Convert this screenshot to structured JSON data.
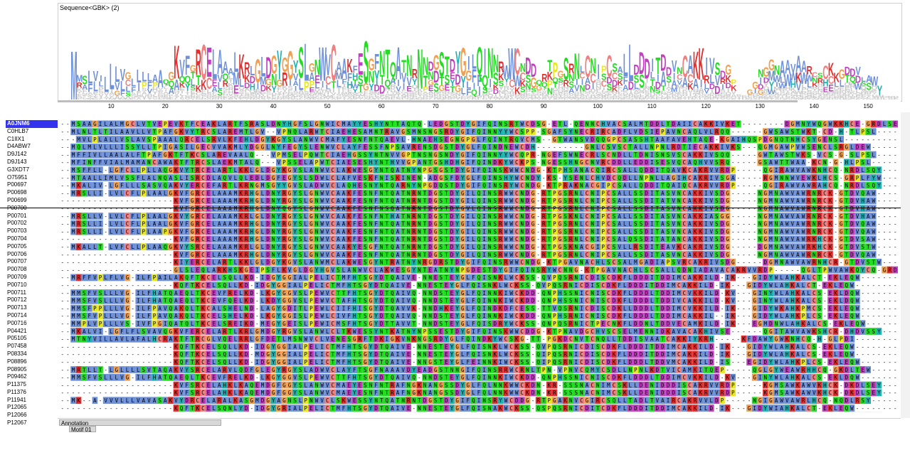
{
  "logo": {
    "title": "Sequence<GBK> (2)"
  },
  "ruler": {
    "ticks": [
      "10",
      "20",
      "30",
      "40",
      "50",
      "60",
      "70",
      "80",
      "90",
      "100",
      "110",
      "120",
      "130",
      "140",
      "150"
    ]
  },
  "annotation": {
    "label": "Annotation",
    "motif": "Motif 01"
  },
  "colors": {
    "A": "#6e90d8",
    "V": "#6e90d8",
    "I": "#6e90d8",
    "L": "#6e90d8",
    "M": "#6e90d8",
    "F": "#6e90d8",
    "W": "#6e90d8",
    "K": "#e03030",
    "R": "#e03030",
    "E": "#c040c0",
    "D": "#c040c0",
    "S": "#22dd22",
    "T": "#22dd22",
    "N": "#22dd22",
    "Q": "#22dd22",
    "C": "#f08080",
    "G": "#f0a050",
    "P": "#e8e820",
    "H": "#20b0b0",
    "Y": "#20b0b0"
  },
  "sequences": [
    {
      "name": "A0JNM6",
      "selected": true,
      "seq": "--MSAAGILALMGCLVTVEPEVKTFCEAKLARTFSRASLDNYHGFSLGNWICMAYYESHYNTTAQTQ-LEDGSTDYGIFQINSRTWCDSG-ETL-QENNCHVACSALMTDDLTDAIICAKKIVKET--------DGMNYWQGWKKHCE-GRDLSEW"
    },
    {
      "name": "C0HLB7",
      "seq": "--MLNLTLTILAAVLLVTPAFGKVYTRCSLAREMTLGV--VPNQLARWTCIAEHESAMNTRAVGSMNSNGSRDYGIFQINNYYWCSPP-SGAFSYNECRIRCADFLVDSIEPAVNCAQLVLRQQ------GWSAWSTWKT-CD-H-TLPSL"
    },
    {
      "name": "C1IIX1",
      "seq": "---MVLPLALLVSLAVSPAAALQRCELSRVLKFEHLDGYKGYSLANWVCMAFYESNFNTQAEVL-HNAEHSEGNGPGLFQINTRQVCMS--GTWANSVDQQGPCSASSHTAAFAVEHTAQE-KGAIHQSPDGNQTNHCSYGENSL"
    },
    {
      "name": "D4ABW7",
      "seq": "--MQLMLVLLLISSYLLTPIGASILGECVVAKMLYDGGLNYFEGYSLENWVCLAYFESSFNPSAVRENSDGSTDYGLFQINDNEWCDH---------GNLCSVSCTALLNPNLRDTIECAKKIVKS---QGMGAWPVWSENCLSRGLDEW"
    },
    {
      "name": "D9J142",
      "seq": "--MFFIVLLAALALFTPAFGKTFTKCSLAREVAALQ---VPMSELPQWTCIAEHGSSYNTNVVGPTNSNGSNDYGIFQINNYYWCQPR-NGEFSWNECRLSCNDLLTDNISNSVSCAKKIVSQQ-----GWTAWSTWKS-VCS-G-SLPSL"
    },
    {
      "name": "D9J143",
      "seq": "--MFINFFVIALMAMANCAWAKTFTRCSLAEKMTALQ---VPSSELAPWTCIAESESHYNTHVVGPANTGSHDHGIFQINDKYWCKPS-NGESSHNGCNVRCDDLLEDDISESVQCAQHVVSRQ-----GSAWTTWAA-KCN-G-HLPSL"
    },
    {
      "name": "G3XDT7",
      "seq": "--MSFFLL-LGFCLLPLLAQGKVYTRCELARTLKKLGLDGYKGVSLANWVCLAKWESGYNTQATNYNPGSGSTDYGIFQINSKWWCNDG-KTPHSANACQIRCSALLQDDITQAVKCAKRVVRDP-----QGIRAWVAWKNHCQ-NRDLSQY"
    },
    {
      "name": "O75951",
      "seq": "--MTAALLIMLVSSFLALNQASLISRCDLAQVLQLEDLDGFEGYSLSDWLCLAFVESKFNISKINEN-ADGSFDYGLFQINSHYWCNDY-KS-YSENLCHVDCQDLLNPNLLAGIHCAKRIVSGA-----RGMNNWVEWKLHCS-GRPLFYW"
    },
    {
      "name": "P00697",
      "seq": "--MKALIV-LGFLLLSASVQAKVYERCEFARTLKRNGMSGYYGVSLADWVCLAQHESNYNTQARNYNPGDQSTDYGIFQINSRYWCNDG-KTPRAKNACGIPCSALLQDDITQAIQCAKRVVRDP-----QGIRAWVAWRAHCQ-NRDLSQY"
    },
    {
      "name": "P00698",
      "seq": "--MRSLLI-LVLCFLPLAALGKVFGRCELAAAMKRHGLDNYRGYSLGNWVCAAKFESNFNTQATNRNTDGSTDYGILQINSRWWCNDG-RTPGSRNLCNIPCSALLSSDITASVNCAKKIVSDG-----NGMNAWVAWRNRCK-GTDVQAW"
    },
    {
      "name": "P00699",
      "seq": "---------------------KVFGRCELAAAMKRHGLDNYRGYSLGNWVCAAKFESNFNTQATNRNTDGSTDYGILQINSRWWCNDG-RTPGSRNLCNIPCSALLSSDITATVNCAKKIVSDG-----NGMNAWVAWRNRCK-GTDVHAW"
    },
    {
      "name": "P00700",
      "seq": "---------------------KVFGRCELAAAMKRHGLDNYQGYSLGNWVCAAKFESNFNSQATNRNTDGSTDYGVLQINSRWWCNDG-RTPGSRNLCNIPCSALLSSDITASVNCAKKIVSDG-----NGMNAWVAWRNRCK-GTDVHAW"
    },
    {
      "name": "P00701",
      "seq": "--MRSLLV-LVLCFLPLAALGKVYGRCELAAAMKRLGLDNYRGYSLGNWVCAAKFESNFNTHATNRNTDGSTDYGILQINSRWWCNDG-RTPGSKNLCNIPCSALLSSDITASVNCAKKIASGG-----NGMNAWVAWRNRCK-GTDVHAW"
    },
    {
      "name": "P00702",
      "seq": "--MRSLLI-LVLCFLPLAALGKVFGRCELAAAMKRHGLDNYRGYSLGNWVCAAKFESNFNTQATNRNTDGSTDYGILQINSRWWCNDG-RTPGSRNLCNIPCSALLSSDITASVNCAKKIVSDG-----NGMNAWVAWRNRCK-GTDVQAW"
    },
    {
      "name": "P00703",
      "seq": "--MRSLLI-LVLCFLPLAAPGKVFGRCELAAAMKRHGLDNYRGYSLGNWVCAAKFESNFNTQATNRNTDGSTDYGILQINSRWWCNDG-RTPGSRNLCNIPCSALLSSDITASVNCAKKIVSDG-----NGMNAWVAWRNRCK-GTDVQAW"
    },
    {
      "name": "P00704",
      "seq": "---------------------KVFGRCELAAAMKRHGLDNYRGYSLGNWVCAAKFESNFNTQATNRNTDGSTDYGILQINSRWWCNDG-RTPGSRNLCNIPCSALQSSDITATANCAKKIVSDG-----NGMNAWVAWRKHCK-GTDVSAW"
    },
    {
      "name": "P00705",
      "seq": "--MKALLT-LVFCLLPLAAQGKVYSRCELAAAMKRLGLDNYRGYSLGNWVCAAKYESGFNTQATNRNTDGSTDYGILQINSRWWCNDG-KTPGSKNACGIPCSVLLRSDITEAVKCAKRIVSDG-----DGMNAWVAWRKHCK-GTDVSTW"
    },
    {
      "name": "P00706",
      "seq": "---------------------KVFGRCELAAAMKRHGLDNYRGYSLGNWVCAAKFESNFNTQATNRNTDGSTDYGILQINSRWWCNDG-RTPGSRNLCNIPCSALLSSDITASVNCAKKIVSDG-----NGMNAWVAWRNRCK-GTDVQAW"
    },
    {
      "name": "P00707",
      "seq": "---------------------KIYERCELARTLKKLGLDGYKGVSLANWMCLAKWESGYNTRATNYNRGDRSTDYGIFQINSRWWCNDG-KTPGAVNACHLSCSALMGADIAPSVRCAKRIVSDG-----DGMNAWVAWRNHCR-GTDVSTW"
    },
    {
      "name": "P00708",
      "seq": "---------------------GLSLEQLARKHSKGEIPSFLKVGLDGYHGVSLANWVCLAKWESGYNTEATNYNPGDESTDYGIFQINSRYWCNNG-KTPGAVNACHLSCSALLQDNIADAVACAKRVVRDP-----QGLTPWVAWKQYCQ-GRDLSKY"
    },
    {
      "name": "P00709",
      "seq": "--MRFFVPLFLVG-ILFPAILAKQFTKCELSQLLKD-IDGYGGIALPELICTMFHTSGYDTQAIVE-NNESTEYGLFQISNKLWCKSS-QVPQSRNICDISCDKFLDDDITDDIMCAKKILD-IK---GIDYWLAHKALCT-EKLEQW"
    },
    {
      "name": "P00710",
      "seq": "---------------------KQFTKCELSQLLKD-IDGYGGIALPELICTMFHTSGYDTQAIVE-NNESTEYGLFQISNKLWCKSS-QVPQSRNICDISCDKFLDDDITDDIMCAKKILD-IK---GIDYWLAHKALCT-EKLEQW"
    },
    {
      "name": "P00711",
      "seq": "--MMSFVSLLLVG-ILFHATQAEQLTKCEVFRELKD-LKGYGGVSLPEWVCTTFHTSGYDTQAIVQ-NNDSTEYGLFQINNKIWCKDD-QNPHSSNICNISCDKFLDDDLTDDIMCVKKILD-KV---GINYWLAHKALCS-EKLDQW"
    },
    {
      "name": "P00712",
      "seq": "--MMSFVSLLLVG-ILFHATQAEQLTKCEVFQELKD-LKDYGGVSLPEWVCTAFHTSGYDTQAIVQ-NNDSTEYGLFQINNKIWCKDD-QNPHSSNICNISCDKFLDDDLTDDIVCAKKILD-KV---GINYWLAHKALCS-EKLDQW"
    },
    {
      "name": "P00713",
      "seq": "--MMSFPPLLLVG-ILFPAVQAKQLTKCALSHELND-LAGYGDITLPEWLCIIFHISGYDTQAVVK-NNDHKEYGLFQINDKDFCESS-TTVQSRNICDISCDKLLDDDLTDDIMCVKKILD-IK---GIDYWKAHKPMCS-EKLEQW"
    },
    {
      "name": "P00714",
      "seq": "--MMSFVPLLLVG-ILFPAVQAKQLTKCELSHELKD-LKGYGGISLPEWLCIVFHTSGYDTQAIVQ-NNDSTEYGLFQINNKIWCKDD-QNPHSRNICNISCDKFLDDDLTDDIMCAKKIL--IK---GIDYWLAHKPLCS-EKLEQW"
    },
    {
      "name": "P00716",
      "seq": "--MMPLVPLLLVS-IVFPGIQATQLTKCELSREIKD-MEGYGEISLPEWICMSFHTSGYDTTAVVT-NNDSTEYGLFQISDRYWCKSS-QNPQSRNICTPECNKFLDDNLTDDVECAMKILD-IK---EGMDNWLAHKALCS-EKLEQW"
    },
    {
      "name": "P04421",
      "seq": "--MKALVI-LGFLFLSVAVQGKVFERCELARTLKRLGMDGYRGVSLANWLCLTKWESSYNTKATNYNPSSESTDYGIFQINSKWWCDDG-KTPNAVDGCHVSCSELMENNIDKAVACAKHIVSE------QGITAWVAWKSHCR-DHDVSSY"
    },
    {
      "name": "P05105",
      "seq": "--MTNYVILLAVLAFALHCRAKTFTRCGLVQELRRLGFDETLMSNWVCLVENESGRFTDKIGKVNKNGSRDYGLFQINDKYWCSKG-TT-PGKDCNVTCNQLLTDDISVAATCAKKIYKRH-----KFDAWYGWKNHCQ-H-GLPDI"
    },
    {
      "name": "P07458",
      "seq": "---------------------KQFTKCELSQLLKD-IDGYGGIALPELICTMFHTSGYDTQAIVE-NNESTEYGLFQISNKLWCKSS-QVPQSRNICDISCDKFLDDDITDDIMCAKKILD-IK---GIDYWLAHKALCS-EKLEQW"
    },
    {
      "name": "P08334",
      "seq": "---------------------KQFTKCELSQLLKD-MDGYGGIALPELICTMFHTSGYDTQAIVE-NNESTEYGLFQISNKLWCKSS-QIPQSRNICDISCDKFLDDDITDDIMCAKKILD-IK---GIDYWLAHKALCS-EKLEQW"
    },
    {
      "name": "P08896",
      "seq": "---------------------KQFTKCELSQLLKD-IDGYGGIALPELICTMFHTSGYDTQAIVE-NNGSTEYGLFEINNKIWCKSS-QIPQSRNICDISCDKFLDDDLTDDVMCAKKILD-IS---EGIDYWLAHKPLCS-EKLEQW"
    },
    {
      "name": "P08905",
      "seq": "--MRTLLT-LGLLLLSVTAQAKVYSRCELARVLQDFGLEGYRGYSLADWVCLAYFTSGFNAAAVDYEADGSTNNGIFQINSRRWCRNLTPN-VPNVCQMYCSDLLNPNLKDTVICAMKITQEP-----QGLGYWEAWRHHCQ-GKDLTEW"
    },
    {
      "name": "P09462",
      "seq": "--MMSFVSLLLVG-ILFHATQAEQLTKCEVFRELKD-LKGYGGVSLPEWVCTTFHTSGYDTQAIVQ-NNDSTEYGLFQINNKIWCKDD-QNPHSSNICNISCDKFLDDDLTDDIMCVKKILD-KV---GINYWLAHKALCS-EKLDQW"
    },
    {
      "name": "P11375",
      "seq": "---------------------KVFSRCELAHKLKAQEMDGFGGYSLANWVCMAEYESNFNTRAFNGKNANGSSDYGLFQLNNKWWCKDN-KR-SSSNACNIMCSKLLDENIDDDISCAKRVVRDP-----KGMSAWKAWVKHCK-DKDLSEY"
    },
    {
      "name": "P11376",
      "seq": "---------------------KVFSRCELAHKLKAQEMDGFGGYSLANWVCMAEYESNFNTRAFNGKNANGSSDYGLFQLNNKWWCKDN-KR-SSSNACNIMCSKLLDENIDDDISCAKRVVRDP-----KGMSAWKAWVKHCK-DKDLSEY"
    },
    {
      "name": "P11941",
      "seq": "--MK--A-VVVLLLVAVASAKVYDRCELARALKASGMDGYAGNSLPNWVCLSKWESSYNTQATNRNTDGSTDYGIFQINSRYWCDDG-RTPGAKNVCGIRCSQLLTADLTVAIRCAKRVVLDP-----NGIGAWVAWRLHCQ-NQDLRSY"
    },
    {
      "name": "P12065",
      "seq": "---------------------KQFTKCELSQNLYD-IDGYGRIALPELICTMFHTSGYDTQAIVE-NNESTEYGLFQISNAKWCKSS-QSPQSRNICDITCDKFLDDDITDDIMCAKKILD-IK---GIDYWIAHKALCT-EKLEQW"
    },
    {
      "name": "P12066",
      "seq": "---------------------KVFERCELARTLKRLGMDGYRGISLANWMCLAKWESGYNTRATNYNPGDRSTDYGIFQINSRYWCNDG-KTPGAVNACHLSCSALLQDNIADAVACAKRVVRDP-----QGIRAWVAWRNRCQ-NRDVRQY"
    },
    {
      "name": "P12067",
      "seq": "---------------------KVYDRCEFARILKKSGMDGYRGVSLANWVCLAKWESDFNTKAINRN-VGSTDYGIFQINSRYWCNDG-KTPKAVNACHISCSVLLQDDLSQDIECAKRVVRDP-----QGIRAWVAWRAHCQ-NRDLSQY"
    }
  ]
}
